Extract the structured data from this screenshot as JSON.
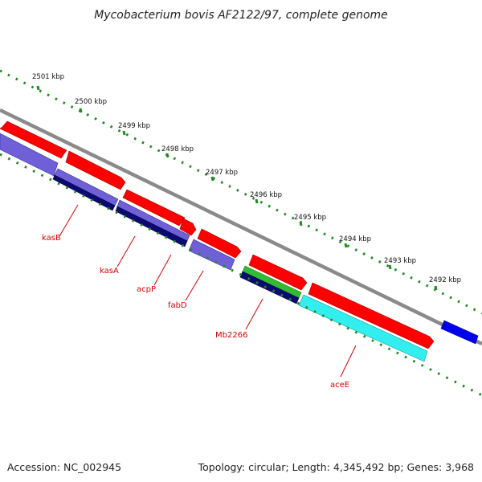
{
  "title": "Mycobacterium bovis AF2122/97, complete genome",
  "footer": {
    "accession": "Accession: NC_002945",
    "summary": "Topology: circular; Length: 4,345,492 bp; Genes: 3,968"
  },
  "ruler": {
    "labels": [
      "2501 kbp",
      "2500 kbp",
      "2499 kbp",
      "2498 kbp",
      "2497 kbp",
      "2496 kbp",
      "2495 kbp",
      "2494 kbp",
      "2493 kbp",
      "2492 kbp"
    ]
  },
  "gene_labels": [
    "kasB",
    "kasA",
    "acpP",
    "fabD",
    "Mb2266",
    "aceE"
  ],
  "colors": {
    "forward_cds": "#ff0000",
    "reverse_cds": "#7060d8",
    "reverse_dark": "#0a0a70",
    "green_feature": "#33bb33",
    "cyan_feature": "#33eeee",
    "blue_feature": "#0000ee",
    "backbone": "#8a8a8a",
    "ruler": "#1f8a1f",
    "label": "#dd0000"
  }
}
